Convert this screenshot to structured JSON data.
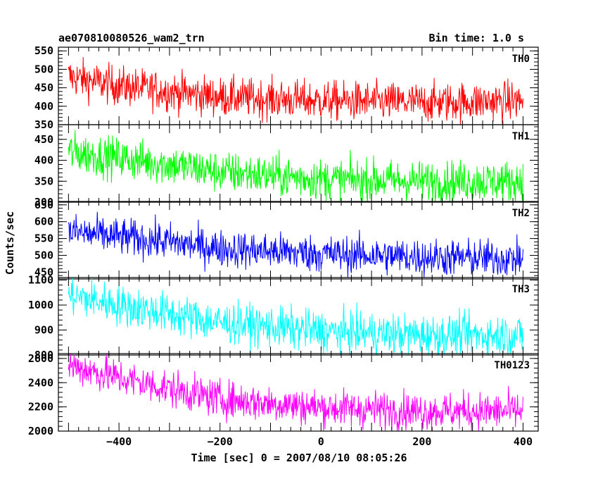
{
  "chart_data": {
    "type": "line",
    "title": "ae070810080526_wam2_trn",
    "subtitle": "Bin time: 1.0 s",
    "xlabel": "Time [sec] 0 = 2007/08/10 08:05:26",
    "ylabel": "Counts/sec",
    "xlim": [
      -520,
      430
    ],
    "x_ticks": [
      -400,
      -200,
      0,
      200,
      400
    ],
    "x_tick_labels": [
      "−400",
      "−200",
      "0",
      "200",
      "400"
    ],
    "x_start": -500,
    "x_end": 400,
    "bin_time": 1.0,
    "panels": [
      {
        "name": "TH0",
        "color": "#ff0000",
        "ylim": [
          350,
          560
        ],
        "y_ticks": [
          350,
          400,
          450,
          500,
          550
        ],
        "y_tick_labels": [
          "350",
          "400",
          "450",
          "500",
          "550"
        ],
        "trend": [
          [
            -500,
            480
          ],
          [
            -400,
            455
          ],
          [
            -300,
            440
          ],
          [
            -200,
            425
          ],
          [
            0,
            415
          ],
          [
            200,
            410
          ],
          [
            400,
            415
          ]
        ],
        "noise": 26
      },
      {
        "name": "TH1",
        "color": "#00ff00",
        "ylim": [
          300,
          485
        ],
        "y_ticks": [
          300,
          350,
          400,
          450
        ],
        "y_tick_labels": [
          "300",
          "350",
          "400",
          "450"
        ],
        "trend": [
          [
            -500,
            420
          ],
          [
            -400,
            405
          ],
          [
            -300,
            390
          ],
          [
            -200,
            372
          ],
          [
            0,
            355
          ],
          [
            200,
            350
          ],
          [
            400,
            350
          ]
        ],
        "noise": 24
      },
      {
        "name": "TH2",
        "color": "#0000ff",
        "ylim": [
          430,
          660
        ],
        "y_ticks": [
          450,
          500,
          550,
          600,
          650
        ],
        "y_tick_labels": [
          "450",
          "500",
          "550",
          "600",
          "650"
        ],
        "trend": [
          [
            -500,
            570
          ],
          [
            -400,
            555
          ],
          [
            -300,
            540
          ],
          [
            -200,
            520
          ],
          [
            0,
            505
          ],
          [
            200,
            495
          ],
          [
            400,
            490
          ]
        ],
        "noise": 27
      },
      {
        "name": "TH3",
        "color": "#00ffff",
        "ylim": [
          800,
          1110
        ],
        "y_ticks": [
          800,
          900,
          1000,
          1100
        ],
        "y_tick_labels": [
          "800",
          "900",
          "1000",
          "1100"
        ],
        "trend": [
          [
            -500,
            1040
          ],
          [
            -400,
            1000
          ],
          [
            -300,
            965
          ],
          [
            -200,
            930
          ],
          [
            0,
            895
          ],
          [
            200,
            880
          ],
          [
            400,
            880
          ]
        ],
        "noise": 40
      },
      {
        "name": "TH0123",
        "color": "#ff00ff",
        "ylim": [
          2000,
          2640
        ],
        "y_ticks": [
          2000,
          2200,
          2400,
          2600
        ],
        "y_tick_labels": [
          "2000",
          "2200",
          "2400",
          "2600"
        ],
        "trend": [
          [
            -500,
            2545
          ],
          [
            -400,
            2440
          ],
          [
            -300,
            2350
          ],
          [
            -200,
            2265
          ],
          [
            0,
            2195
          ],
          [
            200,
            2165
          ],
          [
            400,
            2165
          ]
        ],
        "noise": 75
      }
    ]
  }
}
